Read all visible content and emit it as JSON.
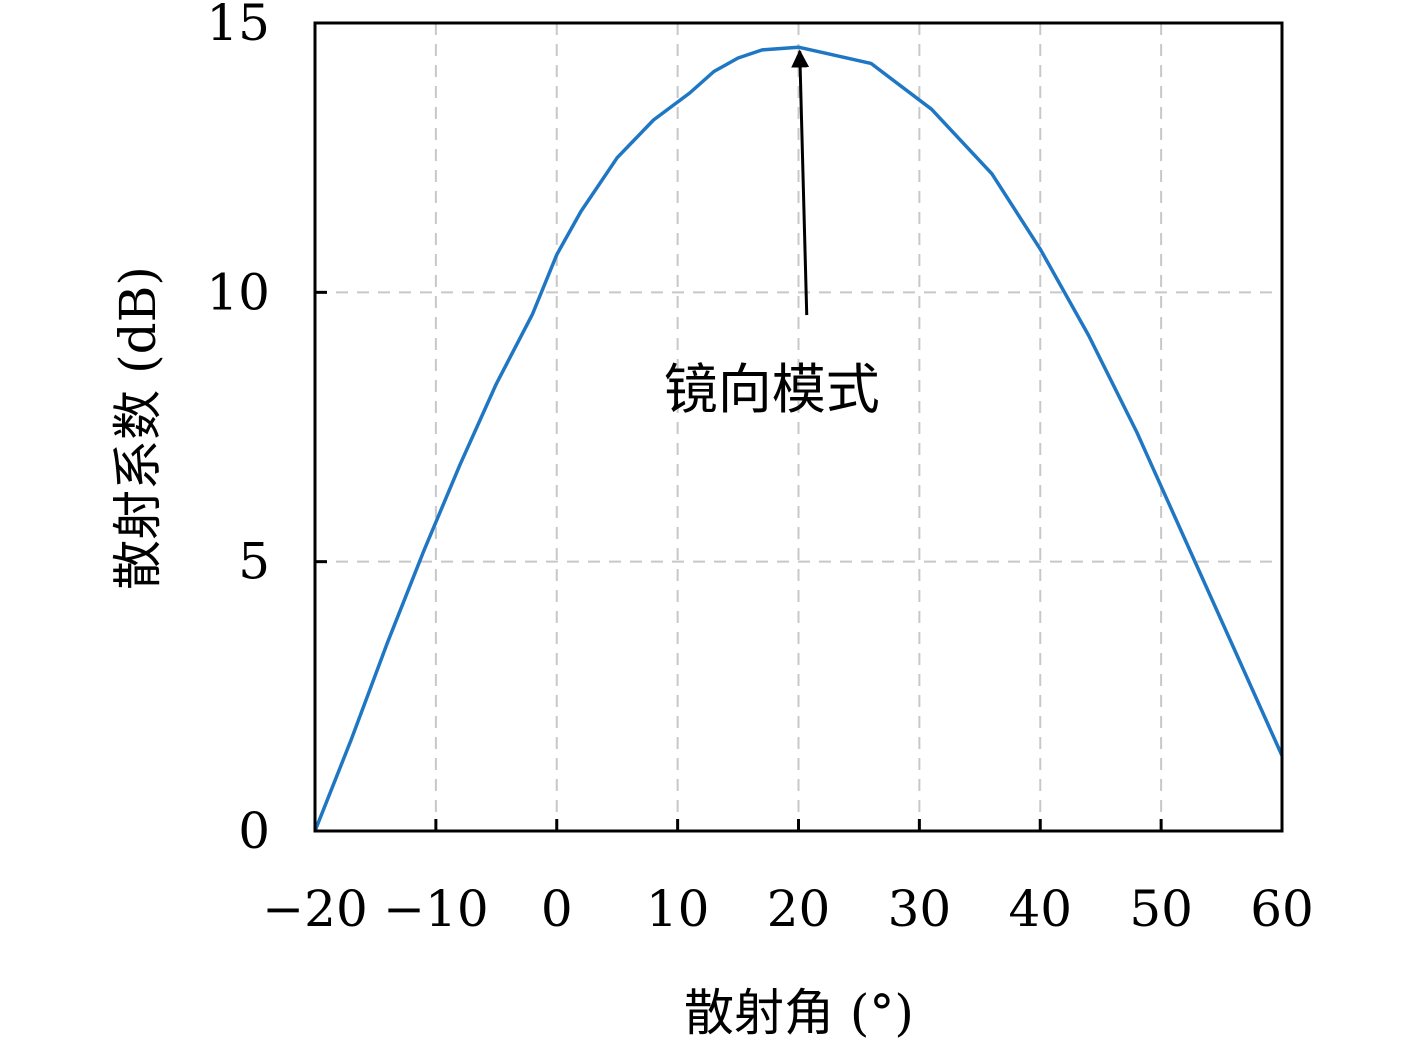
{
  "chart_data": {
    "type": "line",
    "xlabel": "散射角 (°)",
    "ylabel": "散射系数 (dB)",
    "xlim": [
      -20,
      60
    ],
    "ylim": [
      0,
      15
    ],
    "xticks": [
      -20,
      -10,
      0,
      10,
      20,
      30,
      40,
      50,
      60
    ],
    "yticks": [
      0,
      5,
      10,
      15
    ],
    "xtick_labels": [
      "−20",
      "−10",
      "0",
      "10",
      "20",
      "30",
      "40",
      "50",
      "60"
    ],
    "ytick_labels": [
      "0",
      "5",
      "10",
      "15"
    ],
    "grid": true,
    "series": [
      {
        "color": "#1f77c4",
        "x": [
          -20,
          -17,
          -14,
          -11,
          -8,
          -5,
          -2,
          0,
          2,
          5,
          8,
          11,
          13,
          15,
          17,
          20,
          22,
          26,
          31,
          36,
          40,
          44,
          48,
          52,
          56,
          60
        ],
        "y": [
          0,
          1.7,
          3.5,
          5.2,
          6.8,
          8.3,
          9.6,
          10.7,
          11.5,
          12.5,
          13.2,
          13.7,
          14.1,
          14.35,
          14.5,
          14.55,
          14.45,
          14.25,
          13.4,
          12.2,
          10.8,
          9.2,
          7.4,
          5.4,
          3.4,
          1.4
        ]
      }
    ],
    "annotations": [
      {
        "text": "镜向模式",
        "x": 18.2,
        "y": 8.0,
        "arrow_to": {
          "x": 20.1,
          "y": 14.55
        }
      }
    ]
  }
}
